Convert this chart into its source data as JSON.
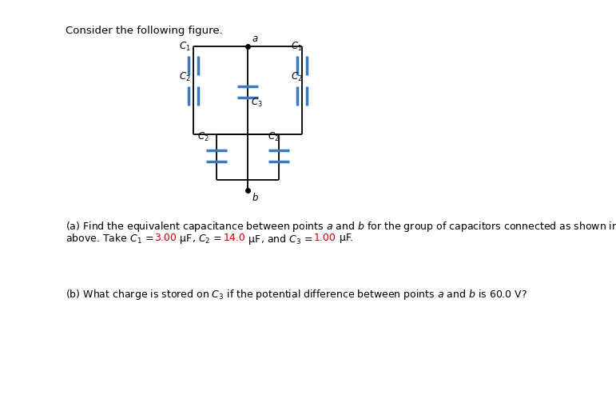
{
  "background_color": "#ffffff",
  "title_text": "Consider the following figure.",
  "cap_color": "#3a7abf",
  "wire_color": "#000000",
  "dot_color": "#000000",
  "text_fontsize": 9.0,
  "label_fontsize": 8.5,
  "red_color": "#cc0000",
  "fig_width": 7.71,
  "fig_height": 4.99,
  "dpi": 100
}
